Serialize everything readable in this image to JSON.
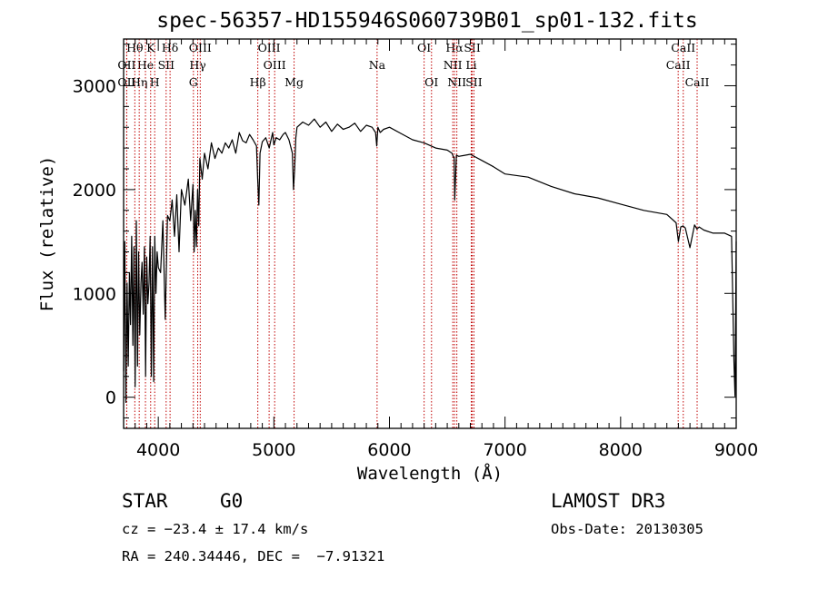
{
  "chart_data": {
    "type": "line",
    "title": "spec-56357-HD155946S060739B01_sp01-132.fits",
    "xlabel": "Wavelength (Å)",
    "ylabel": "Flux (relative)",
    "xlim": [
      3700,
      9000
    ],
    "ylim": [
      -300,
      3450
    ],
    "xticks": [
      4000,
      5000,
      6000,
      7000,
      8000,
      9000
    ],
    "yticks": [
      0,
      1000,
      2000,
      3000
    ],
    "series": [
      {
        "name": "spectrum",
        "x": [
          3700,
          3710,
          3720,
          3730,
          3740,
          3750,
          3760,
          3770,
          3780,
          3790,
          3800,
          3810,
          3820,
          3830,
          3840,
          3850,
          3860,
          3870,
          3880,
          3890,
          3900,
          3910,
          3920,
          3930,
          3940,
          3950,
          3960,
          3970,
          3980,
          3990,
          4000,
          4020,
          4040,
          4060,
          4080,
          4100,
          4120,
          4140,
          4160,
          4180,
          4200,
          4230,
          4260,
          4280,
          4300,
          4310,
          4320,
          4330,
          4340,
          4350,
          4360,
          4380,
          4400,
          4430,
          4460,
          4490,
          4520,
          4550,
          4580,
          4610,
          4640,
          4670,
          4700,
          4730,
          4760,
          4790,
          4820,
          4850,
          4860,
          4870,
          4880,
          4900,
          4930,
          4960,
          4990,
          5000,
          5020,
          5050,
          5080,
          5100,
          5130,
          5160,
          5170,
          5180,
          5190,
          5200,
          5250,
          5300,
          5350,
          5400,
          5450,
          5500,
          5550,
          5600,
          5650,
          5700,
          5750,
          5800,
          5850,
          5880,
          5890,
          5900,
          5920,
          5950,
          6000,
          6100,
          6200,
          6300,
          6400,
          6500,
          6540,
          6560,
          6565,
          6580,
          6600,
          6700,
          6800,
          6900,
          7000,
          7200,
          7400,
          7600,
          7800,
          8000,
          8200,
          8400,
          8480,
          8500,
          8520,
          8540,
          8560,
          8600,
          8640,
          8660,
          8680,
          8720,
          8800,
          8900,
          8960,
          8980,
          8990,
          9000
        ],
        "y": [
          250,
          1500,
          -50,
          1100,
          300,
          1200,
          700,
          1550,
          500,
          1450,
          100,
          1700,
          300,
          1400,
          600,
          1100,
          1300,
          800,
          1450,
          200,
          1350,
          900,
          1100,
          1550,
          200,
          1450,
          150,
          1550,
          1000,
          1400,
          1250,
          1200,
          1700,
          750,
          1750,
          1700,
          1900,
          1550,
          1950,
          1400,
          2000,
          1850,
          2100,
          1700,
          2050,
          1400,
          1800,
          1450,
          2000,
          1650,
          2300,
          2100,
          2350,
          2200,
          2450,
          2300,
          2400,
          2350,
          2450,
          2400,
          2480,
          2350,
          2550,
          2470,
          2450,
          2530,
          2480,
          2420,
          2100,
          1850,
          2350,
          2460,
          2500,
          2400,
          2550,
          2430,
          2500,
          2480,
          2530,
          2550,
          2480,
          2350,
          2000,
          2200,
          2500,
          2600,
          2650,
          2620,
          2680,
          2600,
          2650,
          2560,
          2630,
          2580,
          2600,
          2640,
          2560,
          2620,
          2600,
          2550,
          2420,
          2600,
          2550,
          2580,
          2600,
          2540,
          2480,
          2450,
          2400,
          2380,
          2350,
          2300,
          1900,
          2330,
          2320,
          2340,
          2280,
          2220,
          2150,
          2120,
          2030,
          1960,
          1920,
          1860,
          1800,
          1760,
          1680,
          1500,
          1640,
          1650,
          1630,
          1440,
          1660,
          1620,
          1640,
          1610,
          1580,
          1580,
          1550,
          350,
          10,
          1500
        ]
      }
    ],
    "line_markers": [
      {
        "label": "Hθ",
        "x": 3797,
        "row": 1
      },
      {
        "label": "OII",
        "x": 3727,
        "row": 2
      },
      {
        "label": "OII",
        "x": 3727,
        "row": 3
      },
      {
        "label": "He",
        "x": 3889,
        "row": 2
      },
      {
        "label": "Hη",
        "x": 3835,
        "row": 3
      },
      {
        "label": "K",
        "x": 3934,
        "row": 1
      },
      {
        "label": "SII",
        "x": 4068,
        "row": 2
      },
      {
        "label": "H",
        "x": 3969,
        "row": 3
      },
      {
        "label": "Hδ",
        "x": 4102,
        "row": 1
      },
      {
        "label": "OIII",
        "x": 4363,
        "row": 1
      },
      {
        "label": "Hγ",
        "x": 4341,
        "row": 2
      },
      {
        "label": "G",
        "x": 4304,
        "row": 3
      },
      {
        "label": "OIII",
        "x": 4959,
        "row": 1
      },
      {
        "label": "OIII",
        "x": 5007,
        "row": 2
      },
      {
        "label": "Hβ",
        "x": 4861,
        "row": 3
      },
      {
        "label": "Mg",
        "x": 5175,
        "row": 3
      },
      {
        "label": "Na",
        "x": 5893,
        "row": 2
      },
      {
        "label": "OI",
        "x": 6300,
        "row": 1
      },
      {
        "label": "OI",
        "x": 6364,
        "row": 3
      },
      {
        "label": "Hα",
        "x": 6563,
        "row": 1
      },
      {
        "label": "SII",
        "x": 6716,
        "row": 1
      },
      {
        "label": "NII",
        "x": 6548,
        "row": 2
      },
      {
        "label": "Li",
        "x": 6708,
        "row": 2
      },
      {
        "label": "NII",
        "x": 6583,
        "row": 3
      },
      {
        "label": "SII",
        "x": 6731,
        "row": 3
      },
      {
        "label": "CaII",
        "x": 8542,
        "row": 1
      },
      {
        "label": "CaII",
        "x": 8498,
        "row": 2
      },
      {
        "label": "CaII",
        "x": 8662,
        "row": 3
      }
    ]
  },
  "info": {
    "class_label": "STAR",
    "subclass": "G0",
    "survey": "LAMOST DR3",
    "cz": "cz = −23.4 ± 17.4 km/s",
    "obs_date": "Obs-Date: 20130305",
    "coords": "RA = 240.34446, DEC =  −7.91321"
  }
}
